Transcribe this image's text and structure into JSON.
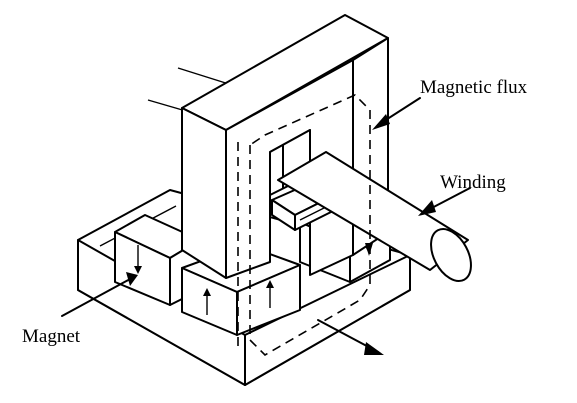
{
  "labels": {
    "magnetic_flux": "Magnetic flux",
    "winding": "Winding",
    "magnet": "Magnet"
  }
}
